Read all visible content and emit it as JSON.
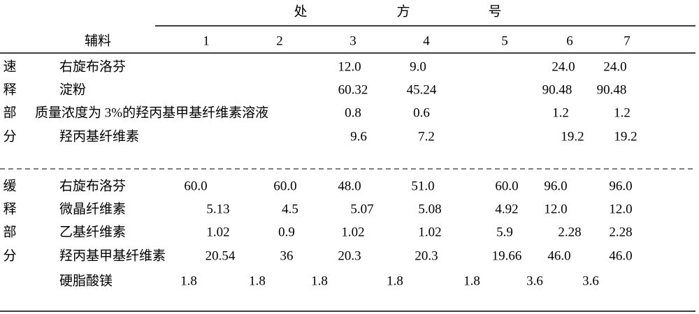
{
  "header": {
    "title": [
      "处",
      "方",
      "号"
    ],
    "ingredient_label": "辅料",
    "columns": [
      "1",
      "2",
      "3",
      "4",
      "5",
      "6",
      "7"
    ]
  },
  "sections": [
    {
      "label": [
        "速",
        "释",
        "部",
        "分"
      ],
      "rows": [
        {
          "name": "右旋布洛芬",
          "cells": [
            null,
            null,
            "12.0",
            "9.0",
            null,
            "24.0",
            "24.0"
          ]
        },
        {
          "name": "淀粉",
          "cells": [
            null,
            null,
            "60.32",
            "45.24",
            null,
            "90.48",
            "90.48"
          ]
        },
        {
          "name": "质量浓度为 3%的羟丙基甲基纤维素溶液",
          "cells": [
            null,
            null,
            "0.8",
            "0.6",
            null,
            "1.2",
            "1.2"
          ]
        },
        {
          "name": "羟丙基纤维素",
          "cells": [
            null,
            null,
            "9.6",
            "7.2",
            null,
            "19.2",
            "19.2"
          ]
        }
      ]
    },
    {
      "label": [
        "缓",
        "释",
        "部",
        "分"
      ],
      "rows": [
        {
          "name": "右旋布洛芬",
          "cells": [
            "60.0",
            "60.0",
            "48.0",
            "51.0",
            "60.0",
            "96.0",
            "96.0"
          ]
        },
        {
          "name": "微晶纤维素",
          "cells": [
            "5.13",
            "4.5",
            "5.07",
            "5.08",
            "4.92",
            "12.0",
            "12.0"
          ]
        },
        {
          "name": "乙基纤维素",
          "cells": [
            "1.02",
            "0.9",
            "1.02",
            "1.02",
            "5.9",
            "2.28",
            "2.28"
          ]
        },
        {
          "name": "羟丙基甲基纤维素",
          "cells": [
            "20.54",
            "36",
            "20.3",
            "20.3",
            "19.66",
            "46.0",
            "46.0"
          ]
        },
        {
          "name": "硬脂酸镁",
          "cells": [
            "1.8",
            "1.8",
            "1.8",
            "1.8",
            "1.8",
            "3.6",
            "3.6"
          ]
        }
      ]
    }
  ]
}
